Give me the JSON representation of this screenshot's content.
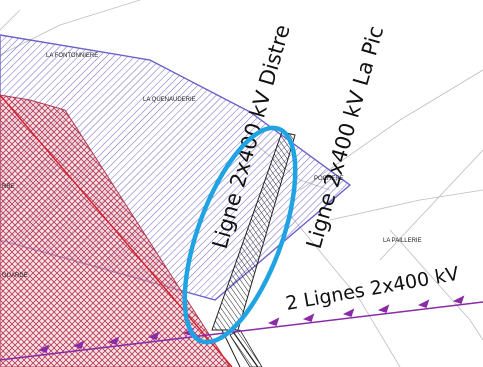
{
  "map": {
    "places": {
      "fontonniere": "LA FONTONNIERE",
      "quenauderie": "LA QUENAUDERIE",
      "rbe": "RBE",
      "pochere": "POCHERE",
      "paillerie": "LA PAILLERIE",
      "ouarde": "OUARDE"
    },
    "line_labels": {
      "distre": "Ligne 2x400 kV Distre",
      "la_pic": "Ligne 2x400 kV La Pic",
      "two_lines": "2 Lignes 2x400 kV"
    },
    "colors": {
      "blue_zone": "#6b63c9",
      "red_zone": "#b23a52",
      "pink_fill": "#f3c9d4",
      "red_boundary": "#d81e2a",
      "power_line": "#8a2ba6",
      "highlight_ellipse": "#1fa3e3"
    }
  }
}
